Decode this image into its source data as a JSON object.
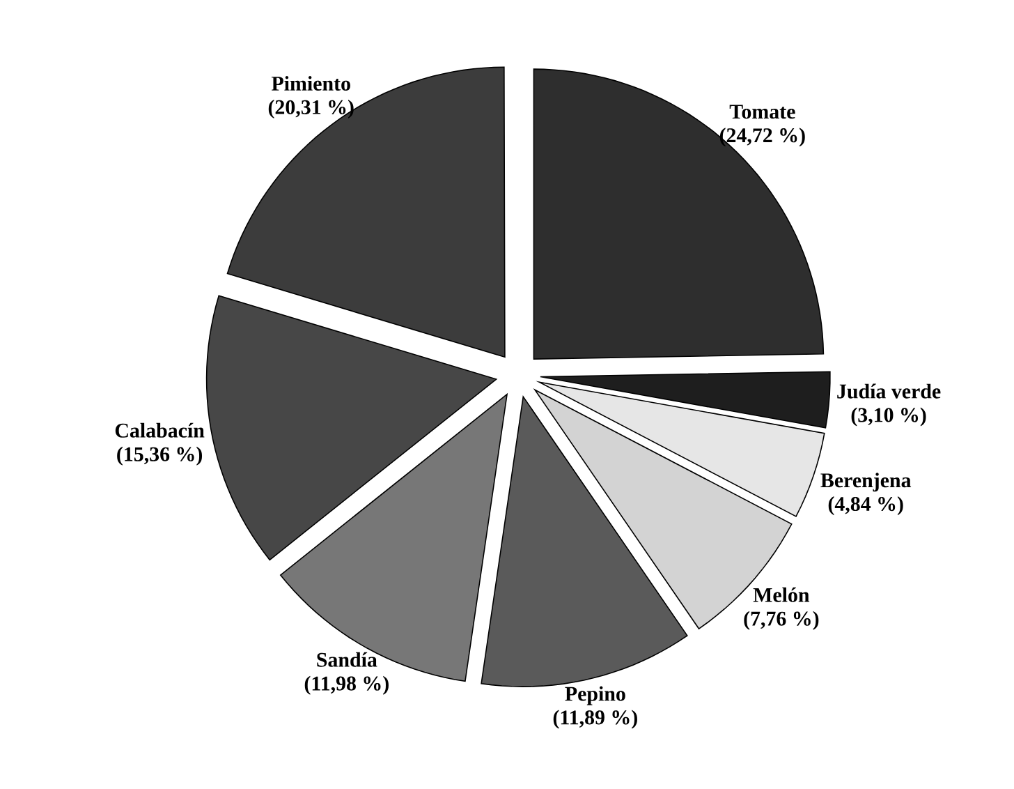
{
  "chart_data": {
    "type": "pie",
    "categories": [
      "Tomate",
      "Judía verde",
      "Berenjena",
      "Melón",
      "Pepino",
      "Sandía",
      "Calabacín",
      "Pimiento"
    ],
    "values": [
      24.72,
      3.1,
      4.84,
      7.76,
      11.89,
      11.98,
      15.36,
      20.31
    ],
    "colors": [
      "#2e2e2e",
      "#1e1e1e",
      "#e6e6e6",
      "#d3d3d3",
      "#5a5a5a",
      "#777777",
      "#474747",
      "#3c3c3c"
    ],
    "value_labels": [
      "(24,72 %)",
      "(3,10 %)",
      "(4,84 %)",
      "(7,76 %)",
      "(11,89 %)",
      "(11,98 %)",
      "(15,36 %)",
      "(20,31 %)"
    ]
  }
}
